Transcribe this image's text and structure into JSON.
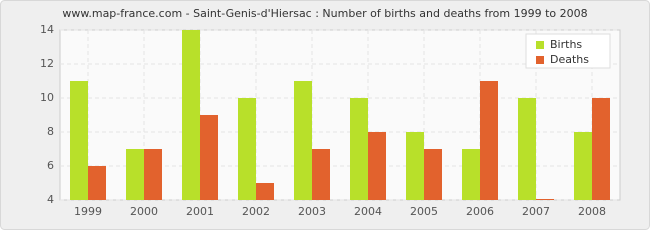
{
  "chart_data": {
    "type": "bar",
    "title": "www.map-france.com - Saint-Genis-d'Hiersac : Number of births and deaths from 1999 to 2008",
    "categories": [
      "1999",
      "2000",
      "2001",
      "2002",
      "2003",
      "2004",
      "2005",
      "2006",
      "2007",
      "2008"
    ],
    "series": [
      {
        "name": "Births",
        "color": "#b8e02a",
        "values": [
          11,
          7,
          14,
          10,
          11,
          10,
          8,
          7,
          10,
          8
        ]
      },
      {
        "name": "Deaths",
        "color": "#e2622d",
        "values": [
          6,
          7,
          9,
          5,
          7,
          8,
          7,
          11,
          4,
          10
        ]
      }
    ],
    "ylim": [
      4,
      14
    ],
    "yticks": [
      4,
      6,
      8,
      10,
      12,
      14
    ],
    "grid": true,
    "legend": "top-right"
  }
}
